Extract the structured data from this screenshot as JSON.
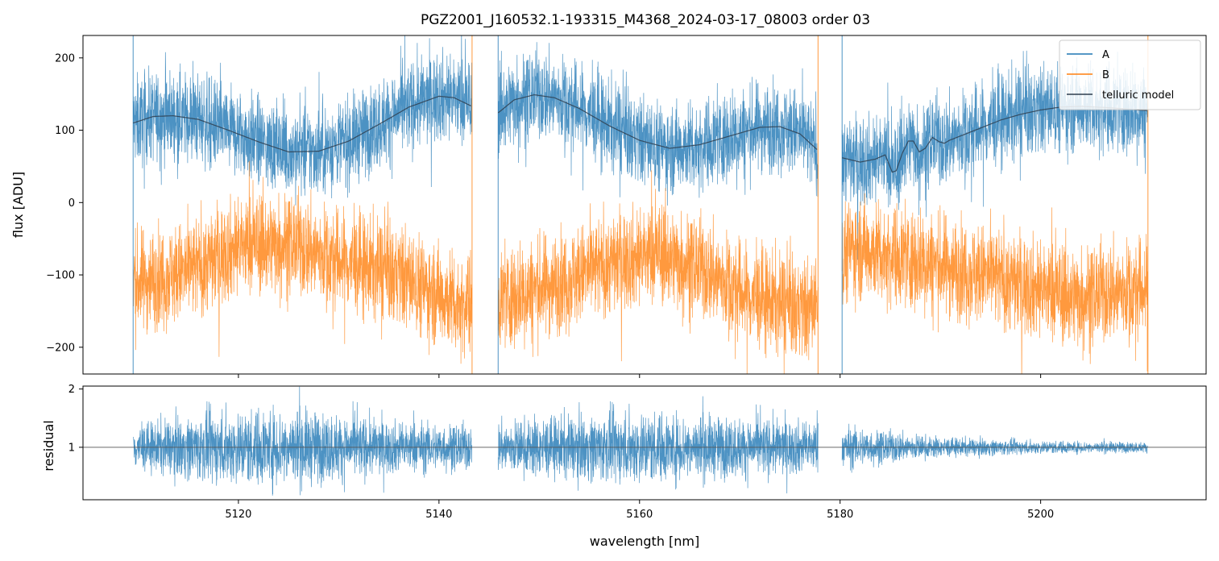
{
  "chart_data": [
    {
      "type": "line",
      "panel": "flux",
      "title": "PGZ2001_J160532.1-193315_M4368_2024-03-17_08003  order 03",
      "xlabel": "",
      "ylabel": "flux [ADU]",
      "xlim": [
        5104.5,
        5216.5
      ],
      "ylim": [
        -237,
        231
      ],
      "yticks": [
        -200,
        -100,
        0,
        100,
        200
      ],
      "ytick_labels": [
        "−200",
        "−100",
        "0",
        "100",
        "200"
      ],
      "xticks": [
        5120,
        5140,
        5160,
        5180,
        5200
      ],
      "segments": [
        [
          5109.5,
          5143.3
        ],
        [
          5145.9,
          5177.8
        ],
        [
          5180.2,
          5210.7
        ]
      ],
      "legend": {
        "placement": "upper right",
        "entries": [
          "A",
          "B",
          "telluric model"
        ]
      },
      "series": [
        {
          "name": "A",
          "color": "#1f77b4",
          "description_level_mean_ADU": "follows telluric model, scatter approx ±50",
          "approx_envelope": [
            [
              5110,
              115
            ],
            [
              5118,
              85
            ],
            [
              5125,
              70
            ],
            [
              5132,
              95
            ],
            [
              5140,
              145
            ],
            [
              5143,
              135
            ],
            [
              5150,
              150
            ],
            [
              5158,
              95
            ],
            [
              5165,
              80
            ],
            [
              5173,
              105
            ],
            [
              5177,
              80
            ],
            [
              5182,
              60
            ],
            [
              5190,
              90
            ],
            [
              5200,
              130
            ],
            [
              5210,
              128
            ]
          ]
        },
        {
          "name": "B",
          "color": "#ff7f0e",
          "approx_envelope": [
            [
              5110,
              -110
            ],
            [
              5115,
              -95
            ],
            [
              5120,
              -60
            ],
            [
              5125,
              -55
            ],
            [
              5130,
              -80
            ],
            [
              5136,
              -100
            ],
            [
              5142,
              -140
            ],
            [
              5147,
              -130
            ],
            [
              5152,
              -110
            ],
            [
              5158,
              -80
            ],
            [
              5162,
              -70
            ],
            [
              5166,
              -90
            ],
            [
              5171,
              -130
            ],
            [
              5177,
              -150
            ],
            [
              5181,
              -60
            ],
            [
              5188,
              -80
            ],
            [
              5196,
              -105
            ],
            [
              5203,
              -130
            ],
            [
              5210,
              -120
            ]
          ]
        },
        {
          "name": "telluric model",
          "color": "#2f3e4f",
          "x": [
            5109.5,
            5111.5,
            5113.5,
            5116,
            5119,
            5122,
            5125,
            5128,
            5131,
            5134,
            5137,
            5140,
            5141.5,
            5143.3,
            5145.9,
            5147.5,
            5149.5,
            5151.5,
            5154,
            5157,
            5160,
            5163,
            5166,
            5169,
            5172,
            5174,
            5176,
            5177.8,
            5180.2,
            5182,
            5183.5,
            5184.5,
            5185.2,
            5185.6,
            5186.2,
            5186.8,
            5187.3,
            5187.9,
            5188.5,
            5189.2,
            5189.9,
            5190.4,
            5190.9,
            5192,
            5194,
            5196,
            5198,
            5200,
            5202,
            5204,
            5207,
            5210.7
          ],
          "y": [
            110,
            119,
            120,
            115,
            100,
            84,
            70,
            71,
            85,
            108,
            132,
            147,
            145,
            133,
            124,
            142,
            149,
            145,
            130,
            106,
            86,
            75,
            80,
            92,
            104,
            105,
            95,
            72,
            62,
            56,
            60,
            66,
            42,
            44,
            68,
            85,
            85,
            70,
            75,
            90,
            84,
            82,
            86,
            92,
            103,
            114,
            122,
            128,
            132,
            133,
            131,
            127
          ]
        }
      ]
    },
    {
      "type": "line",
      "panel": "residual",
      "xlabel": "wavelength [nm]",
      "ylabel": "residual",
      "xlim": [
        5104.5,
        5216.5
      ],
      "ylim": [
        0.1,
        2.05
      ],
      "yticks": [
        1,
        2
      ],
      "ytick_labels": [
        "1",
        "2"
      ],
      "xticks": [
        5120,
        5140,
        5160,
        5180,
        5200
      ],
      "xtick_labels": [
        "5120",
        "5140",
        "5160",
        "5180",
        "5200"
      ],
      "reference_line": 1,
      "series": [
        {
          "name": "",
          "color": "#1f77b4",
          "approx_spread": [
            [
              5110,
              0.35
            ],
            [
              5118,
              0.55
            ],
            [
              5125,
              0.6
            ],
            [
              5135,
              0.4
            ],
            [
              5143,
              0.35
            ],
            [
              5150,
              0.45
            ],
            [
              5160,
              0.55
            ],
            [
              5170,
              0.45
            ],
            [
              5177,
              0.4
            ],
            [
              5182,
              0.3
            ],
            [
              5190,
              0.15
            ],
            [
              5200,
              0.1
            ],
            [
              5210,
              0.08
            ]
          ]
        }
      ]
    }
  ]
}
